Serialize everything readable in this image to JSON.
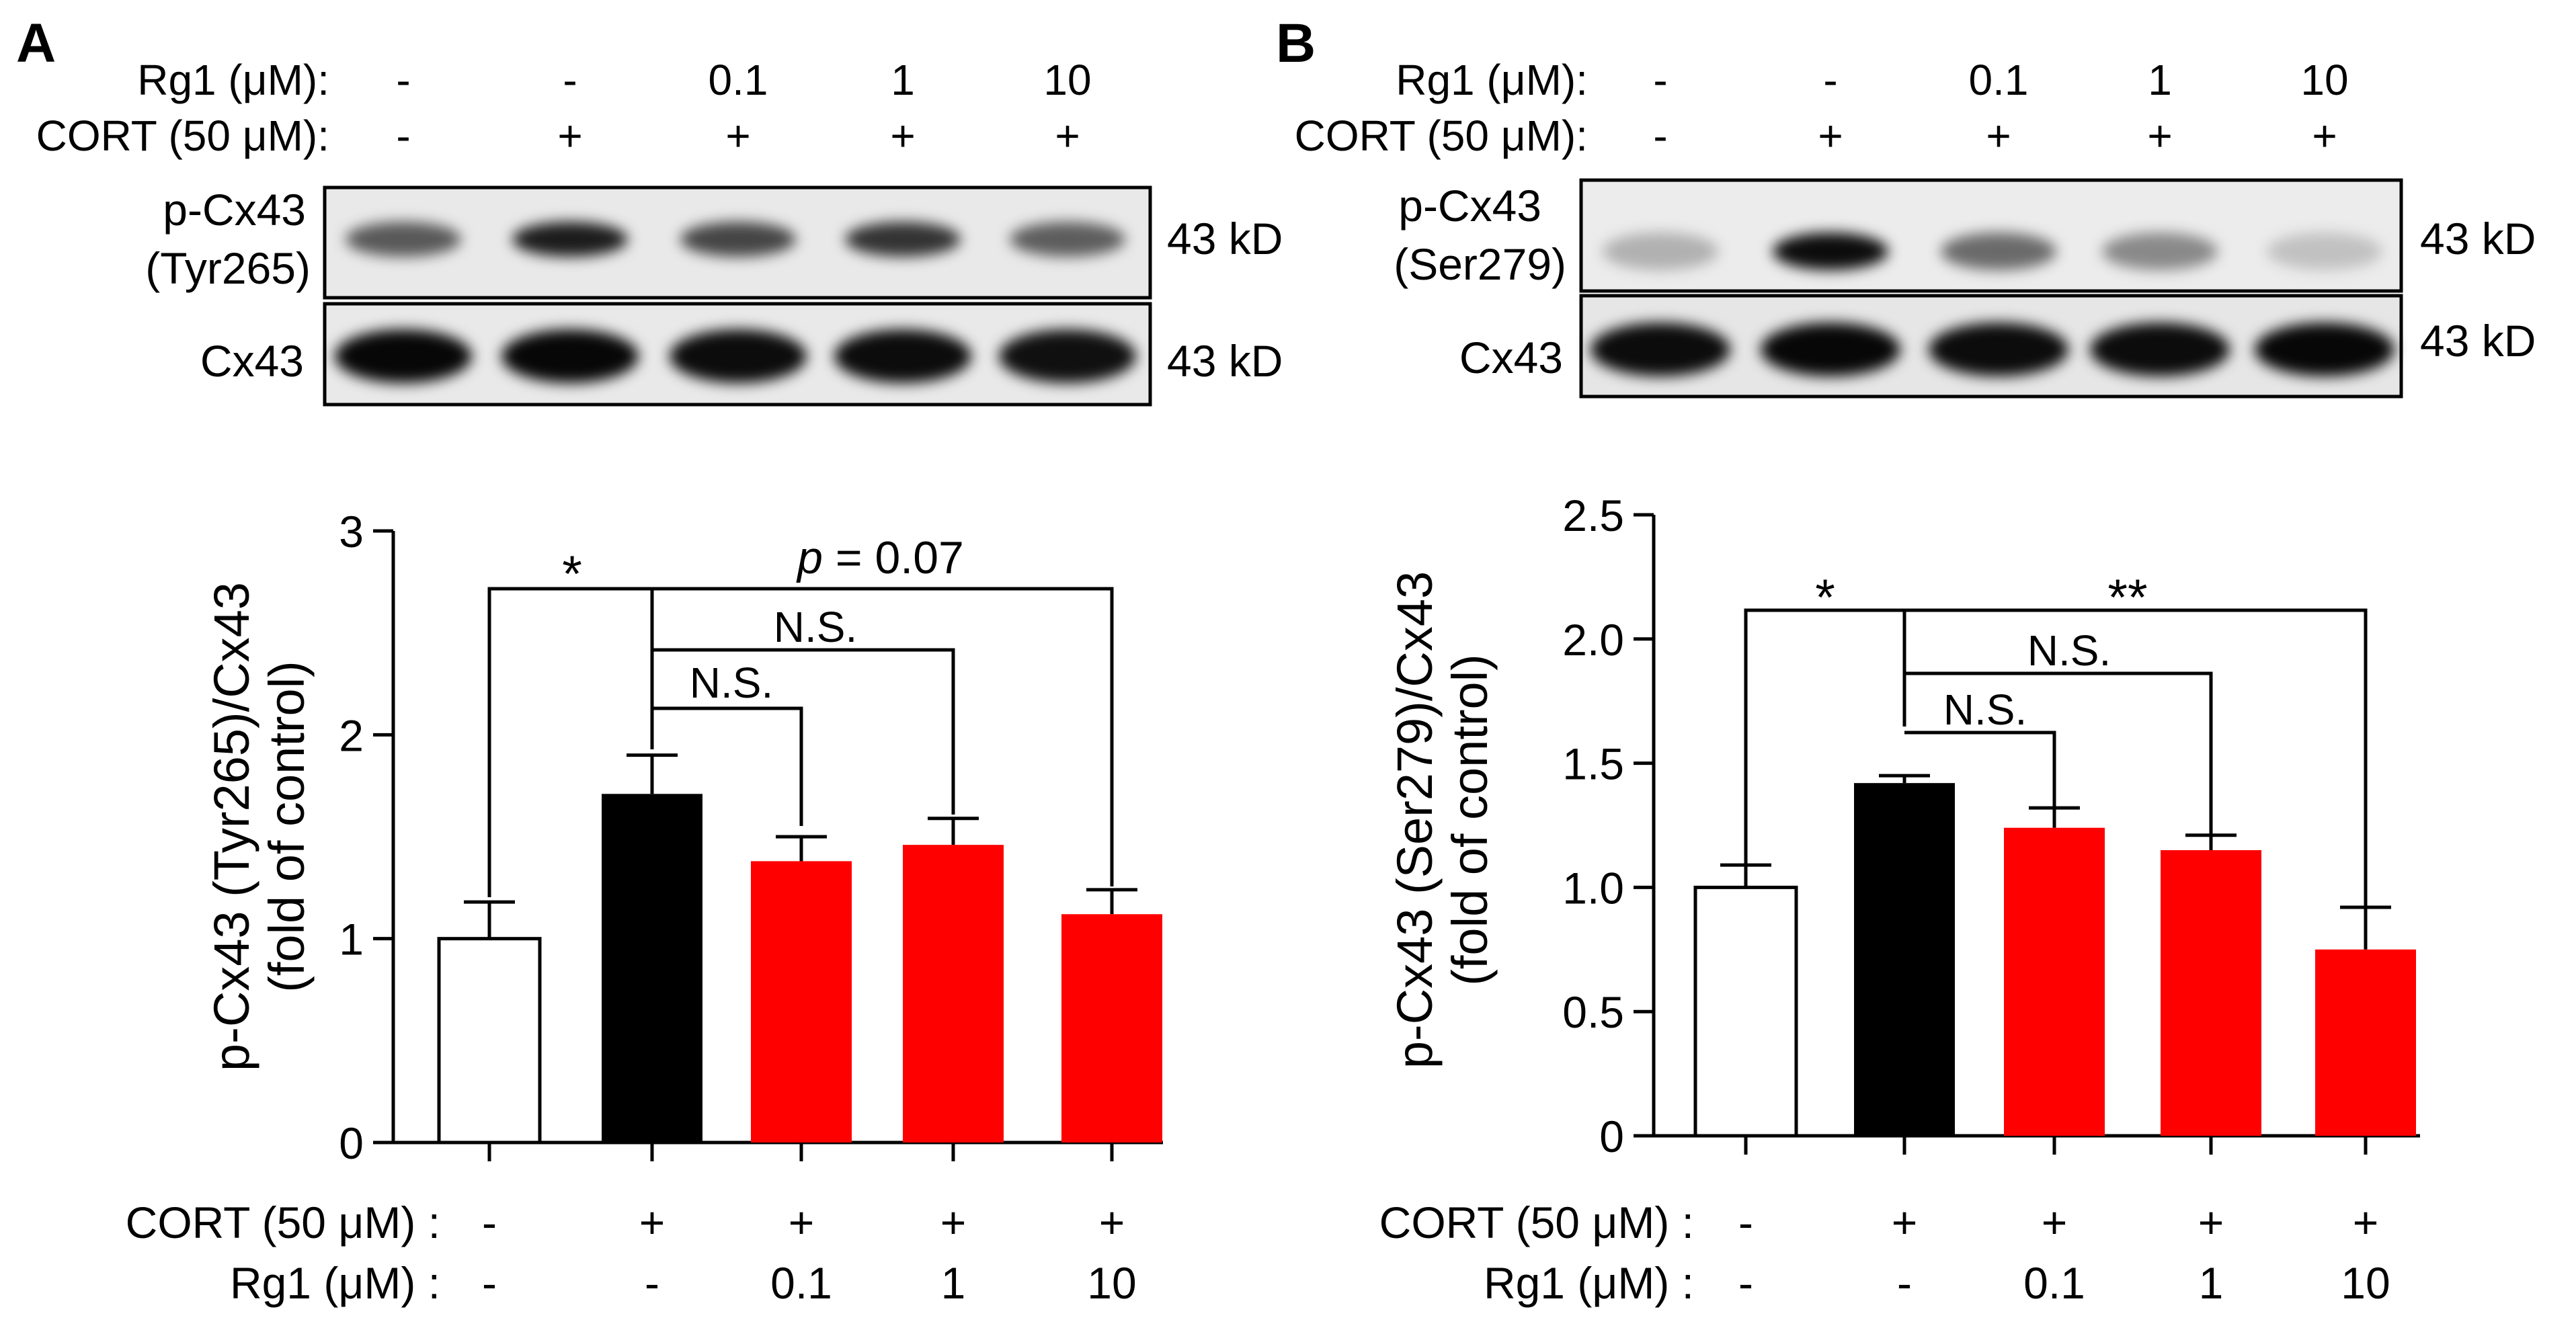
{
  "figure": {
    "panels": [
      {
        "letter": "A",
        "blot": {
          "treatment_rows": [
            {
              "label": "Rg1 (μM):",
              "values": [
                "-",
                "-",
                "0.1",
                "1",
                "10"
              ]
            },
            {
              "label": "CORT (50 μM):",
              "values": [
                "-",
                "+",
                "+",
                "+",
                "+"
              ]
            }
          ],
          "bands": [
            {
              "label_lines": [
                "p-Cx43",
                "(Tyr265)"
              ],
              "size": "43 kD",
              "intensities": [
                0.62,
                0.88,
                0.7,
                0.78,
                0.6
              ]
            },
            {
              "label_lines": [
                "Cx43"
              ],
              "size": "43 kD",
              "intensities": [
                0.97,
                0.97,
                0.95,
                0.95,
                0.93
              ]
            }
          ]
        },
        "bottom_rows": [
          {
            "label": "CORT (50 μM) :",
            "values": [
              "-",
              "+",
              "+",
              "+",
              "+"
            ]
          },
          {
            "label": "Rg1 (μM) :",
            "values": [
              "-",
              "-",
              "0.1",
              "1",
              "10"
            ]
          }
        ],
        "significance": [
          {
            "label": "*"
          },
          {
            "label_prefix": "p",
            "label_suffix": " = 0.07"
          },
          {
            "label": "N.S."
          },
          {
            "label": "N.S."
          }
        ]
      },
      {
        "letter": "B",
        "blot": {
          "treatment_rows": [
            {
              "label": "Rg1 (μM):",
              "values": [
                "-",
                "-",
                "0.1",
                "1",
                "10"
              ]
            },
            {
              "label": "CORT (50 μM):",
              "values": [
                "-",
                "+",
                "+",
                "+",
                "+"
              ]
            }
          ],
          "bands": [
            {
              "label_lines": [
                "p-Cx43",
                "(Ser279)"
              ],
              "size": "43 kD",
              "intensities": [
                0.25,
                0.95,
                0.55,
                0.42,
                0.18
              ]
            },
            {
              "label_lines": [
                "Cx43"
              ],
              "size": "43 kD",
              "intensities": [
                0.95,
                0.97,
                0.95,
                0.95,
                0.97
              ]
            }
          ]
        },
        "bottom_rows": [
          {
            "label": "CORT (50 μM) :",
            "values": [
              "-",
              "+",
              "+",
              "+",
              "+"
            ]
          },
          {
            "label": "Rg1 (μM) :",
            "values": [
              "-",
              "-",
              "0.1",
              "1",
              "10"
            ]
          }
        ],
        "significance": [
          {
            "label": "*"
          },
          {
            "label": "**"
          },
          {
            "label": "N.S."
          },
          {
            "label": "N.S."
          }
        ]
      }
    ]
  },
  "chart_data": [
    {
      "type": "bar",
      "panel": "A",
      "title": "",
      "xlabel": "",
      "ylabel_lines": [
        "p-Cx43 (Tyr265)/Cx43",
        "(fold of control)"
      ],
      "categories": [
        "Control",
        "CORT",
        "CORT + Rg1 0.1 μM",
        "CORT + Rg1 1 μM",
        "CORT + Rg1 10 μM"
      ],
      "values": [
        1.0,
        1.71,
        1.38,
        1.46,
        1.12
      ],
      "errors": [
        0.18,
        0.19,
        0.12,
        0.13,
        0.12
      ],
      "colors": [
        "#ffffff",
        "#000000",
        "#ff0000",
        "#ff0000",
        "#ff0000"
      ],
      "ylim": [
        0,
        3
      ],
      "yticks": [
        0,
        1,
        2,
        3
      ],
      "ytick_labels": [
        "0",
        "1",
        "2",
        "3"
      ]
    },
    {
      "type": "bar",
      "panel": "B",
      "title": "",
      "xlabel": "",
      "ylabel_lines": [
        "p-Cx43 (Ser279)/Cx43",
        "(fold of control)"
      ],
      "categories": [
        "Control",
        "CORT",
        "CORT + Rg1 0.1 μM",
        "CORT + Rg1 1 μM",
        "CORT + Rg1 10 μM"
      ],
      "values": [
        1.0,
        1.42,
        1.24,
        1.15,
        0.75
      ],
      "errors": [
        0.09,
        0.03,
        0.08,
        0.06,
        0.17
      ],
      "colors": [
        "#ffffff",
        "#000000",
        "#ff0000",
        "#ff0000",
        "#ff0000"
      ],
      "ylim": [
        0,
        2.5
      ],
      "yticks": [
        0,
        0.5,
        1.0,
        1.5,
        2.0,
        2.5
      ],
      "ytick_labels": [
        "0",
        "0.5",
        "1.0",
        "1.5",
        "2.0",
        "2.5"
      ]
    }
  ]
}
